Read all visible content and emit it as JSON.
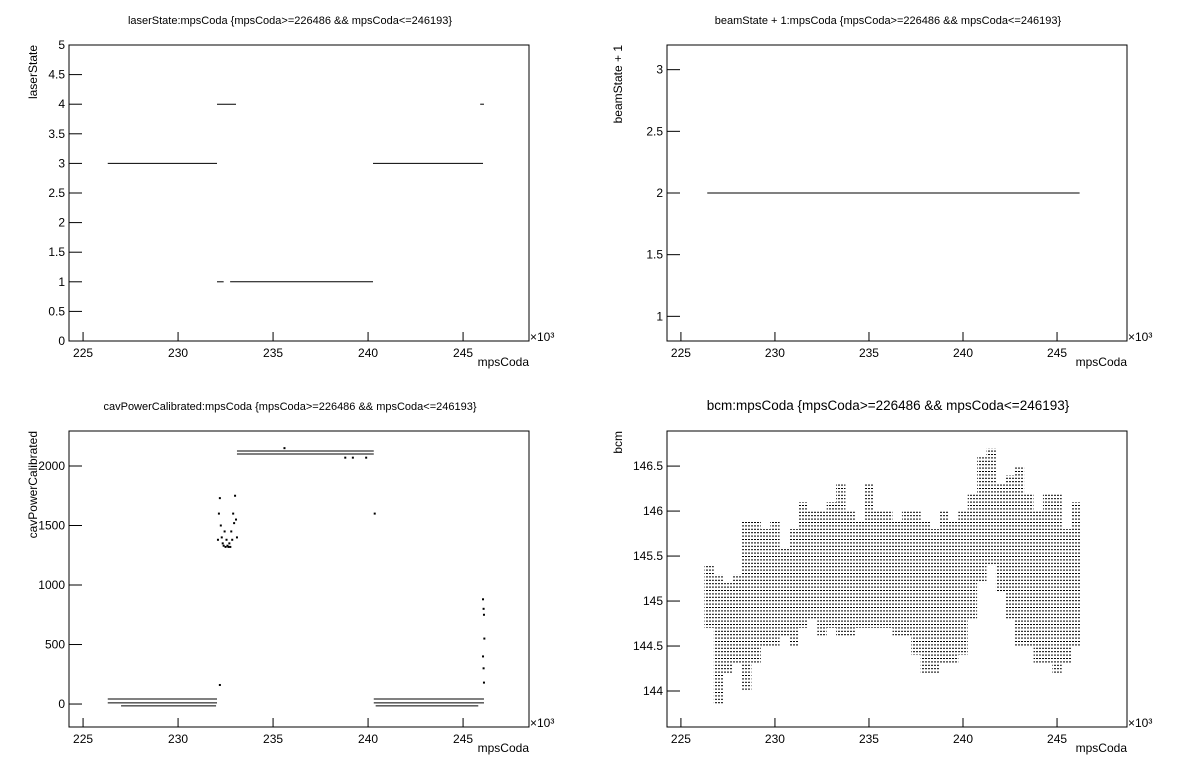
{
  "chart_data": [
    {
      "type": "scatter",
      "title": "laserState:mpsCoda {mpsCoda>=226486 && mpsCoda<=246193}",
      "xlabel": "mpsCoda",
      "ylabel": "laserState",
      "x_multiplier": "×10³",
      "color": "#000000",
      "xlim": [
        224.26,
        248.47
      ],
      "ylim": [
        0,
        5
      ],
      "xticks": [
        225,
        230,
        235,
        240,
        245
      ],
      "yticks": [
        0,
        0.5,
        1,
        1.5,
        2,
        2.5,
        3,
        3.5,
        4,
        4.5,
        5
      ],
      "segments": [
        {
          "x": [
            226.3,
            232.05
          ],
          "y": 3
        },
        {
          "x": [
            232.05,
            233.05
          ],
          "y": 4
        },
        {
          "x": [
            232.05,
            232.4
          ],
          "y": 1
        },
        {
          "x": [
            232.74,
            240.26
          ],
          "y": 1
        },
        {
          "x": [
            240.26,
            246.05
          ],
          "y": 3
        },
        {
          "x": [
            245.9,
            246.1
          ],
          "y": 4
        }
      ]
    },
    {
      "type": "scatter",
      "title": "beamState + 1:mpsCoda {mpsCoda>=226486 && mpsCoda<=246193}",
      "xlabel": "mpsCoda",
      "ylabel": "beamState + 1",
      "x_multiplier": "×10³",
      "color": "#000000",
      "xlim": [
        224.26,
        248.72
      ],
      "ylim": [
        0.8,
        3.2
      ],
      "xticks": [
        225,
        230,
        235,
        240,
        245
      ],
      "yticks": [
        1,
        1.5,
        2,
        2.5,
        3
      ],
      "segments": [
        {
          "x": [
            226.4,
            246.2
          ],
          "y": 2
        }
      ]
    },
    {
      "type": "scatter",
      "title": "cavPowerCalibrated:mpsCoda {mpsCoda>=226486 && mpsCoda<=246193}",
      "xlabel": "mpsCoda",
      "ylabel": "cavPowerCalibrated",
      "x_multiplier": "×10³",
      "color": "#000000",
      "xlim": [
        224.26,
        248.47
      ],
      "ylim": [
        -193,
        2294
      ],
      "xticks": [
        225,
        230,
        235,
        240,
        245
      ],
      "yticks": [
        0,
        500,
        1000,
        1500,
        2000
      ],
      "segments": [
        {
          "x": [
            226.3,
            232.05
          ],
          "y": 42
        },
        {
          "x": [
            226.3,
            232.05
          ],
          "y": 10
        },
        {
          "x": [
            227.0,
            232.0
          ],
          "y": -15
        },
        {
          "x": [
            233.1,
            240.3
          ],
          "y": 2126
        },
        {
          "x": [
            233.1,
            240.3
          ],
          "y": 2101
        },
        {
          "x": [
            240.3,
            246.1
          ],
          "y": 42
        },
        {
          "x": [
            240.3,
            246.1
          ],
          "y": 10
        },
        {
          "x": [
            240.4,
            245.8
          ],
          "y": -15
        }
      ],
      "points": {
        "x": [
          232.1,
          232.15,
          232.2,
          232.25,
          232.3,
          232.35,
          232.4,
          232.5,
          232.6,
          232.7,
          232.8,
          232.9,
          233.0,
          233.05,
          233.1,
          232.45,
          232.55,
          232.65,
          232.75,
          232.85,
          232.95,
          232.2,
          235.6,
          238.8,
          239.2,
          239.9,
          240.35,
          246.05,
          246.08,
          246.1,
          246.12,
          246.05,
          246.08,
          246.1
        ],
        "y": [
          1380,
          1600,
          1730,
          1500,
          1400,
          1350,
          1330,
          1320,
          1330,
          1350,
          1450,
          1600,
          1750,
          1550,
          1400,
          1450,
          1380,
          1320,
          1320,
          1380,
          1520,
          160,
          2150,
          2070,
          2070,
          2070,
          1600,
          880,
          800,
          750,
          550,
          400,
          300,
          180
        ]
      }
    },
    {
      "type": "scatter",
      "title": "bcm:mpsCoda {mpsCoda>=226486 && mpsCoda<=246193}",
      "xlabel": "mpsCoda",
      "ylabel": "bcm",
      "x_multiplier": "×10³",
      "color": "#000000",
      "xlim": [
        224.26,
        248.72
      ],
      "ylim": [
        143.6,
        146.89
      ],
      "xticks": [
        225,
        230,
        235,
        240,
        245
      ],
      "yticks": [
        144,
        144.5,
        145,
        145.5,
        146,
        146.5
      ],
      "bands": {
        "x": [
          226.5,
          227,
          227.5,
          228,
          228.5,
          229,
          229.5,
          230,
          230.5,
          231,
          231.5,
          232,
          232.5,
          233,
          233.5,
          234,
          234.5,
          235,
          235.5,
          236,
          236.5,
          237,
          237.5,
          238,
          238.5,
          239,
          239.5,
          240,
          240.5,
          241,
          241.5,
          242,
          242.5,
          243,
          243.5,
          244,
          244.5,
          245,
          245.5,
          246
        ],
        "low": [
          144.7,
          143.85,
          144.2,
          144.3,
          144.0,
          144.3,
          144.5,
          144.5,
          144.6,
          144.5,
          144.7,
          144.8,
          144.6,
          144.7,
          144.6,
          144.6,
          144.7,
          144.7,
          144.7,
          144.7,
          144.6,
          144.6,
          144.4,
          144.2,
          144.2,
          144.3,
          144.3,
          144.4,
          144.8,
          145.2,
          145.4,
          145.1,
          144.8,
          144.5,
          144.5,
          144.3,
          144.3,
          144.2,
          144.3,
          144.5
        ],
        "high": [
          145.4,
          145.3,
          145.2,
          145.3,
          145.9,
          145.9,
          145.8,
          145.9,
          145.6,
          145.8,
          146.1,
          146.0,
          146.0,
          146.1,
          146.3,
          146.0,
          145.9,
          146.3,
          146.0,
          146.0,
          145.9,
          146.0,
          146.0,
          145.9,
          145.8,
          146.0,
          145.9,
          146.0,
          146.2,
          146.6,
          146.7,
          146.3,
          146.4,
          146.5,
          146.2,
          146.0,
          146.2,
          146.2,
          145.8,
          146.1
        ]
      }
    }
  ]
}
